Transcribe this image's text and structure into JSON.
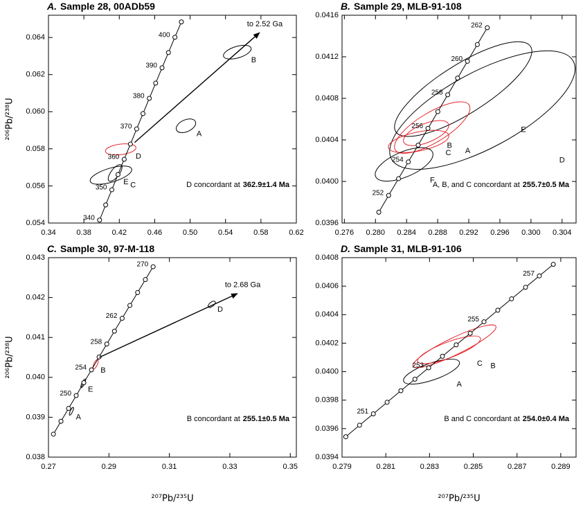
{
  "chart_data": [
    {
      "type": "concordia",
      "panel": "A.",
      "title": "Sample 28, 00ADb59",
      "ylabel": "²⁰⁶Pb/²³⁸U",
      "xlim": [
        0.34,
        0.62
      ],
      "ylim": [
        0.054,
        0.0652
      ],
      "xticks": [
        0.34,
        0.38,
        0.42,
        0.46,
        {
          "value": 0.5,
          "label": "0.50"
        },
        0.54,
        0.58,
        0.62
      ],
      "yticks": [
        0.054,
        0.056,
        0.058,
        {
          "value": 0.06,
          "label": "0.060"
        },
        0.062,
        0.064
      ],
      "concordia": {
        "color": "#000000",
        "x": [
          0.39773,
          0.40463,
          0.41157,
          0.41853,
          0.42554,
          0.43257,
          0.43965,
          0.44675,
          0.45389,
          0.46107,
          0.46828,
          0.47553,
          0.48281,
          0.49013
        ],
        "y": [
          0.054158,
          0.054976,
          0.055794,
          0.056614,
          0.057433,
          0.058254,
          0.059075,
          0.059897,
          0.060719,
          0.061542,
          0.062366,
          0.06319,
          0.064016,
          0.06484
        ],
        "ages": [
          340,
          null,
          350,
          null,
          360,
          null,
          370,
          null,
          380,
          null,
          390,
          null,
          400,
          null
        ]
      },
      "ellipses": [
        {
          "label": "B",
          "x": 0.5533,
          "y": 0.06321,
          "sx": 0.0157,
          "sy": 0.00037,
          "rho": 0.5,
          "color": "#000000"
        },
        {
          "label": "A",
          "x": 0.4953,
          "y": 0.05924,
          "sx": 0.011,
          "sy": 0.00037,
          "rho": 0.4,
          "color": "#000000"
        },
        {
          "label": "D",
          "x": 0.4216,
          "y": 0.05797,
          "sx": 0.0173,
          "sy": 0.0003,
          "rho": 0.3,
          "color": "#e3262b"
        },
        {
          "label": "E",
          "x": 0.4153,
          "y": 0.0567,
          "sx": 0.0078,
          "sy": 0.00045,
          "rho": 0.7,
          "color": "#000000"
        },
        {
          "label": "C",
          "x": 0.4106,
          "y": 0.05658,
          "sx": 0.0235,
          "sy": 0.00049,
          "rho": 0.6,
          "color": "#000000"
        }
      ],
      "arrow": {
        "x": [
          0.4373,
          0.5784
        ],
        "y": [
          0.05834,
          0.06426
        ],
        "label": "to 2.52 Ga"
      },
      "note": "D concordant at",
      "note_age": "362.9±1.4 Ma"
    },
    {
      "type": "concordia",
      "panel": "B.",
      "title": "Sample 29, MLB-91-108",
      "xlim": [
        0.2757,
        0.3058
      ],
      "ylim": [
        0.0396,
        0.0416
      ],
      "xticks": [
        0.276,
        {
          "value": 0.28,
          "label": "0.280"
        },
        0.284,
        0.288,
        0.292,
        0.296,
        {
          "value": 0.3,
          "label": "0.300"
        },
        0.304
      ],
      "yticks": [
        0.0396,
        {
          "value": 0.04,
          "label": "0.0400"
        },
        0.0404,
        0.0408,
        0.0412,
        0.0416
      ],
      "concordia": {
        "color": "#000000",
        "x": [
          0.28043,
          0.28169,
          0.28296,
          0.28422,
          0.28549,
          0.28675,
          0.28802,
          0.28929,
          0.29056,
          0.29183,
          0.2931,
          0.29438
        ],
        "y": [
          0.039704,
          0.039866,
          0.040027,
          0.040188,
          0.04035,
          0.040511,
          0.040672,
          0.040834,
          0.040995,
          0.041157,
          0.041318,
          0.04148
        ],
        "ages": [
          null,
          252,
          null,
          254,
          null,
          256,
          null,
          258,
          null,
          260,
          null,
          262
        ]
      },
      "ellipses": [
        {
          "label": "E",
          "x": 0.29128,
          "y": 0.040889,
          "sx": 0.00883,
          "sy": 0.000456,
          "rho": 0.8,
          "color": "#000000"
        },
        {
          "label": "D",
          "x": 0.29375,
          "y": 0.040687,
          "sx": 0.01192,
          "sy": 0.00057,
          "rho": 0.7,
          "color": "#000000"
        },
        {
          "label": "A",
          "x": 0.2873,
          "y": 0.040519,
          "sx": 0.00486,
          "sy": 0.000248,
          "rho": 0.75,
          "color": "#e3262b"
        },
        {
          "label": "B",
          "x": 0.28651,
          "y": 0.040466,
          "sx": 0.00291,
          "sy": 0.000121,
          "rho": 0.6,
          "color": "#e3262b"
        },
        {
          "label": "C",
          "x": 0.28554,
          "y": 0.040385,
          "sx": 0.00389,
          "sy": 0.000107,
          "rho": 0.5,
          "color": "#e3262b"
        },
        {
          "label": "F",
          "x": 0.28368,
          "y": 0.040164,
          "sx": 0.00371,
          "sy": 0.000161,
          "rho": 0.6,
          "color": "#000000"
        }
      ],
      "note": "A, B, and C concordant at",
      "note_age": "255.7±0.5 Ma"
    },
    {
      "type": "concordia",
      "panel": "C.",
      "title": "Sample 30, 97-M-118",
      "xlabel": "²⁰⁷Pb/²³⁵U",
      "ylabel": "²⁰⁶Pb/²³⁸U",
      "xlim": [
        0.27,
        0.352
      ],
      "ylim": [
        0.038,
        0.043
      ],
      "xticks": [
        0.27,
        0.29,
        0.31,
        0.33,
        0.35
      ],
      "yticks": [
        0.038,
        0.039,
        {
          "value": 0.04,
          "label": "0.040"
        },
        0.041,
        0.042,
        0.043
      ],
      "concordia": {
        "color": "#000000",
        "x": [
          0.27163,
          0.27414,
          0.27666,
          0.27917,
          0.28169,
          0.28422,
          0.28675,
          0.28929,
          0.29183,
          0.29438,
          0.29693,
          0.29949,
          0.30205,
          0.30462
        ],
        "y": [
          0.038576,
          0.038898,
          0.039221,
          0.039543,
          0.039866,
          0.040188,
          0.040511,
          0.040834,
          0.041157,
          0.04148,
          0.041803,
          0.042126,
          0.04245,
          0.042773
        ],
        "ages": [
          null,
          null,
          null,
          250,
          null,
          254,
          null,
          258,
          null,
          262,
          null,
          null,
          null,
          270
        ]
      },
      "ellipses": [
        {
          "label": "B",
          "x": 0.2856,
          "y": 0.04033,
          "sx": 0.0009,
          "sy": 0.00012,
          "rho": 0.7,
          "color": "#e3262b"
        },
        {
          "label": "E",
          "x": 0.2815,
          "y": 0.03985,
          "sx": 0.0008,
          "sy": 0.00011,
          "rho": 0.8,
          "color": "#000000"
        },
        {
          "label": "A",
          "x": 0.2776,
          "y": 0.03915,
          "sx": 0.0007,
          "sy": 0.0001,
          "rho": 0.8,
          "color": "#000000"
        },
        {
          "label": "D",
          "x": 0.324,
          "y": 0.04183,
          "sx": 0.0012,
          "sy": 8e-05,
          "rho": 0.6,
          "color": "#000000"
        }
      ],
      "arrow": {
        "x": [
          0.2868,
          0.3325
        ],
        "y": [
          0.0405,
          0.0421
        ],
        "label": "to 2.68 Ga"
      },
      "note": "B concordant at",
      "note_age": "255.1±0.5 Ma"
    },
    {
      "type": "concordia",
      "panel": "D.",
      "title": "Sample 31, MLB-91-106",
      "xlabel": "²⁰⁷Pb/²³⁵U",
      "xlim": [
        0.279,
        0.2897
      ],
      "ylim": [
        0.0394,
        0.0408
      ],
      "xticks": [
        0.279,
        0.281,
        0.283,
        0.285,
        0.287,
        0.289
      ],
      "yticks": [
        0.0394,
        0.0396,
        0.0398,
        {
          "value": 0.04,
          "label": "0.0400"
        },
        0.0402,
        0.0404,
        0.0406,
        0.0408
      ],
      "concordia": {
        "color": "#000000",
        "x": [
          0.27917,
          0.2798,
          0.28043,
          0.28106,
          0.28169,
          0.28233,
          0.28296,
          0.28359,
          0.28422,
          0.28486,
          0.28549,
          0.28612,
          0.28675,
          0.28739,
          0.28802,
          0.28866
        ],
        "y": [
          0.039543,
          0.039624,
          0.039704,
          0.039785,
          0.039866,
          0.039947,
          0.040027,
          0.040108,
          0.040188,
          0.040269,
          0.04035,
          0.040431,
          0.040511,
          0.040592,
          0.040672,
          0.040753
        ],
        "ages": [
          null,
          null,
          251,
          null,
          null,
          null,
          253,
          null,
          null,
          null,
          255,
          null,
          null,
          null,
          257,
          null
        ]
      },
      "ellipses": [
        {
          "label": "A",
          "x": 0.28309,
          "y": 0.04,
          "sx": 0.00128,
          "sy": 8.75e-05,
          "rho": 0.7,
          "color": "#000000"
        },
        {
          "label": "B",
          "x": 0.28414,
          "y": 0.040178,
          "sx": 0.0019,
          "sy": 0.00015,
          "rho": 0.9,
          "color": "#e3262b"
        },
        {
          "label": "C",
          "x": 0.28389,
          "y": 0.040153,
          "sx": 0.00144,
          "sy": 9.72e-05,
          "rho": 0.8,
          "color": "#e3262b"
        }
      ],
      "note": "B and C concordant at",
      "note_age": "254.0±0.4 Ma"
    }
  ]
}
